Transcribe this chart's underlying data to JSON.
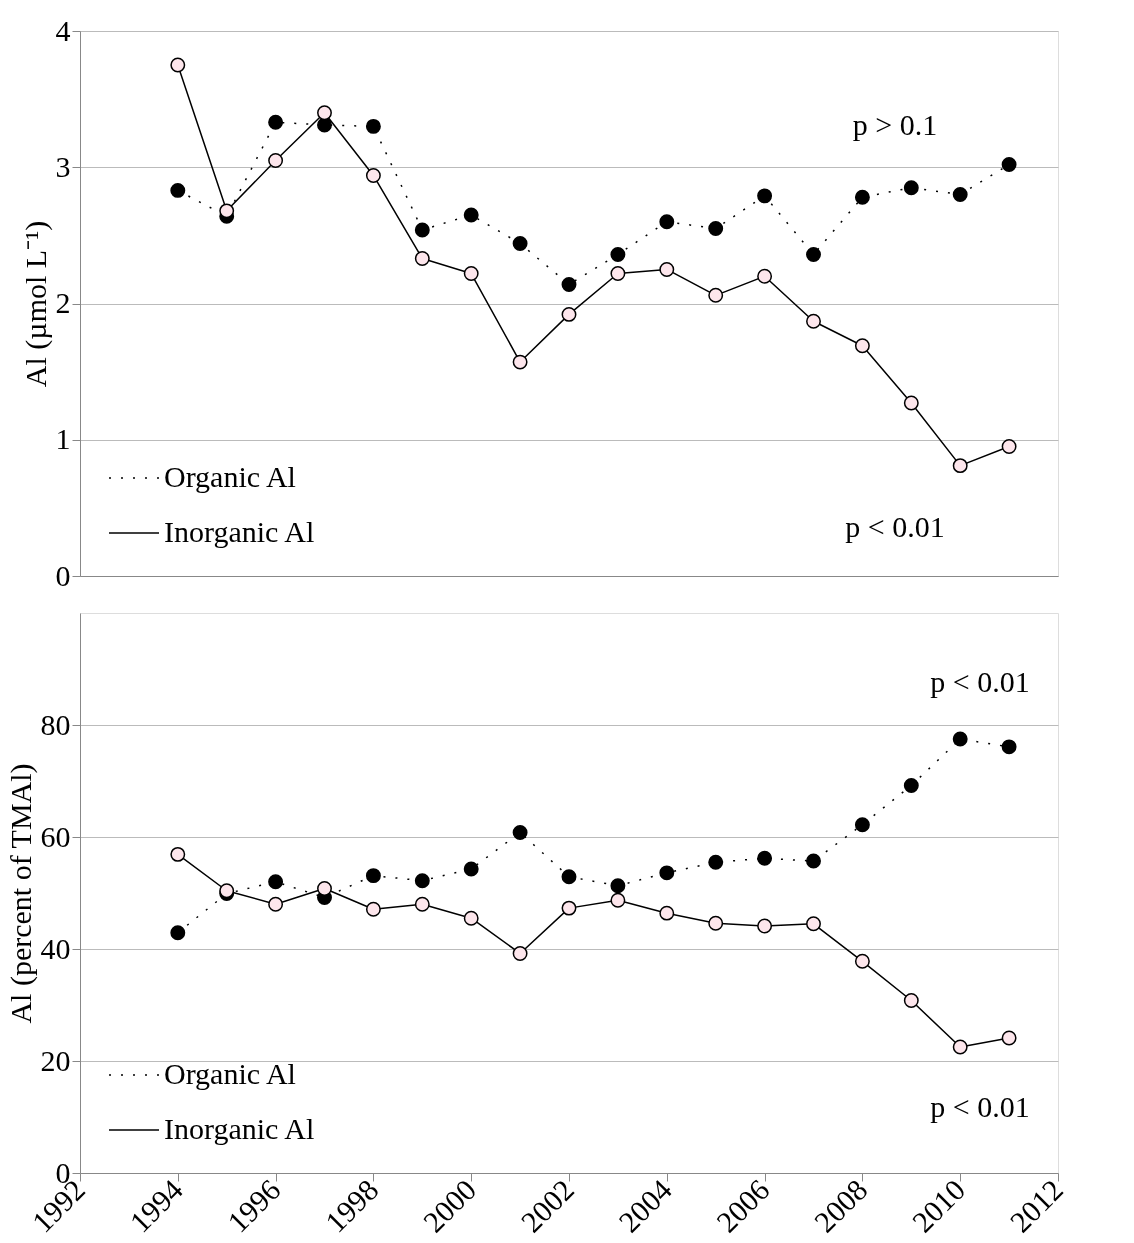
{
  "chart_data": [
    {
      "type": "line",
      "ylabel": "Al (µmol L⁻¹)",
      "x": [
        1994,
        1995,
        1996,
        1997,
        1998,
        1999,
        2000,
        2001,
        2002,
        2003,
        2004,
        2005,
        2006,
        2007,
        2008,
        2009,
        2010,
        2011
      ],
      "series": [
        {
          "name": "Organic Al",
          "color": "#000000",
          "line_style": "dotted",
          "values": [
            2.83,
            2.64,
            3.33,
            3.31,
            3.3,
            2.54,
            2.65,
            2.44,
            2.14,
            2.36,
            2.6,
            2.55,
            2.79,
            2.36,
            2.78,
            2.85,
            2.8,
            3.02
          ]
        },
        {
          "name": "Inorganic Al",
          "color": "#000000",
          "line_style": "solid",
          "values": [
            3.75,
            2.68,
            3.05,
            3.4,
            2.94,
            2.33,
            2.22,
            1.57,
            1.92,
            2.22,
            2.25,
            2.06,
            2.2,
            1.87,
            1.69,
            1.27,
            0.81,
            0.95
          ]
        }
      ],
      "marker": "circle",
      "xlim": [
        1992,
        2012
      ],
      "ylim": [
        0,
        4
      ],
      "yticks": [
        0,
        1,
        2,
        3,
        4
      ],
      "grid": "y",
      "legend": "bottom left",
      "tick_labels": "y",
      "annotations": [
        "p > 0.1",
        "p < 0.01"
      ]
    },
    {
      "type": "line",
      "ylabel": "Al (percent of TMAl)",
      "x": [
        1994,
        1995,
        1996,
        1997,
        1998,
        1999,
        2000,
        2001,
        2002,
        2003,
        2004,
        2005,
        2006,
        2007,
        2008,
        2009,
        2010,
        2011
      ],
      "series": [
        {
          "name": "Organic Al",
          "color": "#000000",
          "line_style": "dotted",
          "values": [
            42.9,
            49.9,
            52.0,
            49.2,
            53.1,
            52.2,
            54.3,
            60.8,
            52.9,
            51.3,
            53.6,
            55.5,
            56.2,
            55.7,
            62.2,
            69.2,
            77.5,
            76.1
          ]
        },
        {
          "name": "Inorganic Al",
          "color": "#000000",
          "line_style": "solid",
          "values": [
            56.9,
            50.4,
            48.0,
            50.8,
            47.1,
            48.0,
            45.5,
            39.2,
            47.3,
            48.7,
            46.4,
            44.6,
            44.1,
            44.5,
            37.8,
            30.8,
            22.5,
            24.1
          ]
        }
      ],
      "marker": "circle",
      "xlim": [
        1992,
        2012
      ],
      "xticks": [
        1992,
        1994,
        1996,
        1998,
        2000,
        2002,
        2004,
        2006,
        2008,
        2010,
        2012
      ],
      "ylim": [
        0,
        100
      ],
      "yticks": [
        0,
        20,
        40,
        60,
        80
      ],
      "grid": "y",
      "legend": "bottom left",
      "annotations": [
        "p < 0.01",
        "p < 0.01"
      ]
    }
  ]
}
